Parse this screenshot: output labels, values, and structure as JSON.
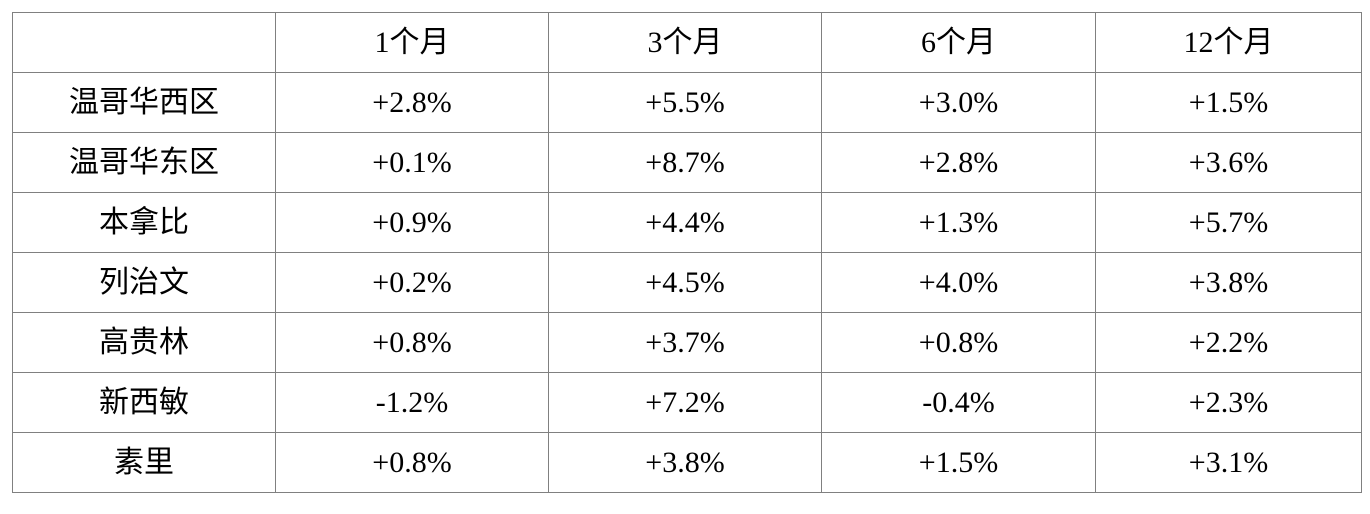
{
  "chart_data": {
    "type": "table",
    "title": "",
    "columns": [
      "",
      "1个月",
      "3个月",
      "6个月",
      "12个月"
    ],
    "rows": [
      [
        "温哥华西区",
        "+2.8%",
        "+5.5%",
        "+3.0%",
        "+1.5%"
      ],
      [
        "温哥华东区",
        "+0.1%",
        "+8.7%",
        "+2.8%",
        "+3.6%"
      ],
      [
        "本拿比",
        "+0.9%",
        "+4.4%",
        "+1.3%",
        "+5.7%"
      ],
      [
        "列治文",
        "+0.2%",
        "+4.5%",
        "+4.0%",
        "+3.8%"
      ],
      [
        "高贵林",
        "+0.8%",
        "+3.7%",
        "+0.8%",
        "+2.2%"
      ],
      [
        "新西敏",
        "-1.2%",
        "+7.2%",
        "-0.4%",
        "+2.3%"
      ],
      [
        "素里",
        "+0.8%",
        "+3.8%",
        "+1.5%",
        "+3.1%"
      ]
    ],
    "layout": {
      "grid": true,
      "border_color": "#808080",
      "text_color": "#000000",
      "background_color": "#ffffff"
    }
  }
}
